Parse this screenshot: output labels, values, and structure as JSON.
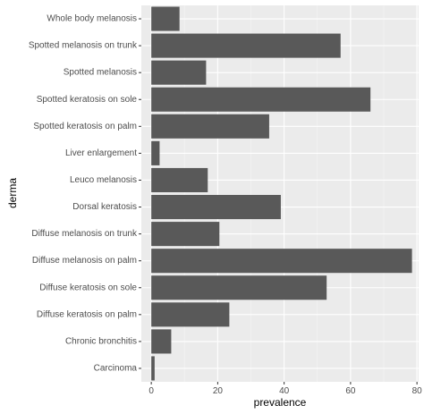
{
  "chart_data": {
    "type": "bar",
    "orientation": "horizontal",
    "title": "",
    "xlabel": "prevalence",
    "ylabel": "derma",
    "categories": [
      "Whole body melanosis",
      "Spotted melanosis on trunk",
      "Spotted melanosis",
      "Spotted keratosis on sole",
      "Spotted keratosis on palm",
      "Liver enlargement",
      "Leuco melanosis",
      "Dorsal keratosis",
      "Diffuse melanosis on trunk",
      "Diffuse melanosis on palm",
      "Diffuse keratosis on sole",
      "Diffuse keratosis on palm",
      "Chronic bronchitis",
      "Carcinoma"
    ],
    "values": [
      8.5,
      57.0,
      16.5,
      66.0,
      35.5,
      2.5,
      17.0,
      39.0,
      20.5,
      78.5,
      52.8,
      23.5,
      6.0,
      1.0
    ],
    "xlim": [
      -3,
      80.5
    ],
    "xticks": [
      0,
      20,
      40,
      60,
      80
    ],
    "grid": true,
    "colors": {
      "bar": "#595959",
      "panel": "#ebebeb",
      "grid_major": "#ffffff",
      "grid_minor": "#f5f5f5"
    }
  }
}
